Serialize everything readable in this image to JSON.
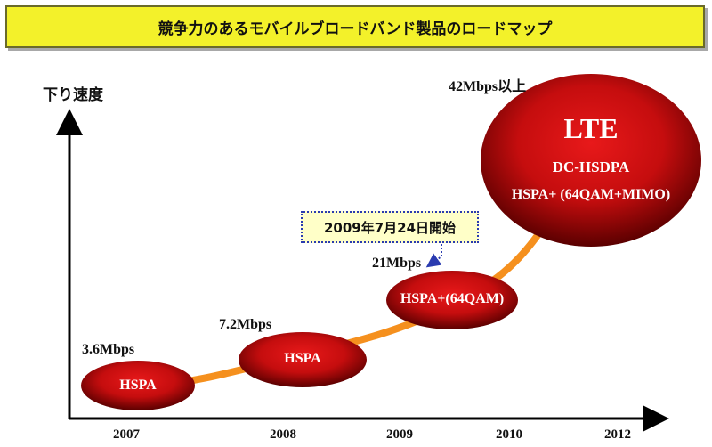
{
  "title": "競争力のあるモバイルブロードバンド製品のロードマップ",
  "y_axis_label": "下り速度",
  "x_axis_years": [
    "2007",
    "2008",
    "2009",
    "2010",
    "2012"
  ],
  "nodes": [
    {
      "speed": "3.6Mbps",
      "lines": [
        "HSPA"
      ]
    },
    {
      "speed": "7.2Mbps",
      "lines": [
        "HSPA"
      ]
    },
    {
      "speed": "21Mbps",
      "lines": [
        "HSPA+(64QAM)"
      ]
    },
    {
      "speed": "42Mbps以上",
      "lines": [
        "LTE",
        "DC-HSDPA",
        "HSPA+ (64QAM+MIMO)"
      ]
    }
  ],
  "callout": "2009年7月24日開始",
  "colors": {
    "title_bg": "#f3f12a",
    "bubble_red": "#d40f10",
    "bubble_dark": "#6a0000",
    "curve": "#f5901e",
    "callout_bg": "#ffffc8",
    "callout_border": "#2a3bb0"
  }
}
